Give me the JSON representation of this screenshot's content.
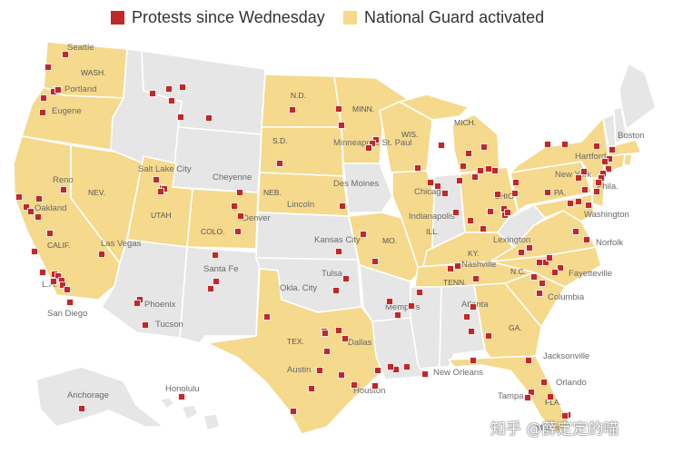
{
  "legend": {
    "protests_label": "Protests since Wednesday",
    "guard_label": "National Guard activated"
  },
  "colors": {
    "guard": "#f5d98c",
    "non_guard": "#e6e6e6",
    "border": "#ffffff",
    "protest": "#c0282b",
    "dot_outline": "#ffffff"
  },
  "guard_states": [
    "WA",
    "OR",
    "CA",
    "NV",
    "UT",
    "CO",
    "ND",
    "SD",
    "NE",
    "MN",
    "WI",
    "MI",
    "IL",
    "IN",
    "OH",
    "PA",
    "NY",
    "NJ",
    "MA",
    "CT",
    "RI",
    "MO",
    "KY",
    "TN",
    "GA",
    "FL",
    "SC",
    "NC",
    "TX",
    "MD",
    "DC",
    "DE",
    "VA"
  ],
  "state_labels": [
    "WASH.",
    "NEV.",
    "UTAH",
    "COLO.",
    "N.D.",
    "S.D.",
    "NEB.",
    "MINN.",
    "WIS.",
    "MICH.",
    "OHIO",
    "PA.",
    "ILL.",
    "MO.",
    "KY.",
    "TENN.",
    "N.C.",
    "GA.",
    "FLA.",
    "TEX.",
    "CALIF."
  ],
  "cities": [
    "Seattle",
    "Portland",
    "Eugene",
    "Reno",
    "Oakland",
    "Las Vegas",
    "L.A.",
    "San Diego",
    "Salt Lake City",
    "Cheyenne",
    "Denver",
    "Santa Fe",
    "Phoenix",
    "Tucson",
    "Okla. City",
    "Kansas City",
    "Tulsa",
    "Des Moines",
    "Lincoln",
    "Minneapolis St. Paul",
    "Chicago",
    "Indianapolis",
    "Memphis",
    "Atlanta",
    "Lexington",
    "Nashville",
    "New Orleans",
    "Houston",
    "Dallas",
    "Austin",
    "Jacksonville",
    "Orlando",
    "Tampa",
    "Miami",
    "Columbia",
    "Fayetteville",
    "Norfolk",
    "Washington",
    "Phila.",
    "New York",
    "Hartford",
    "Boston",
    "Anchorage",
    "Honolulu"
  ],
  "watermark": "知乎 @薛定定的喵"
}
